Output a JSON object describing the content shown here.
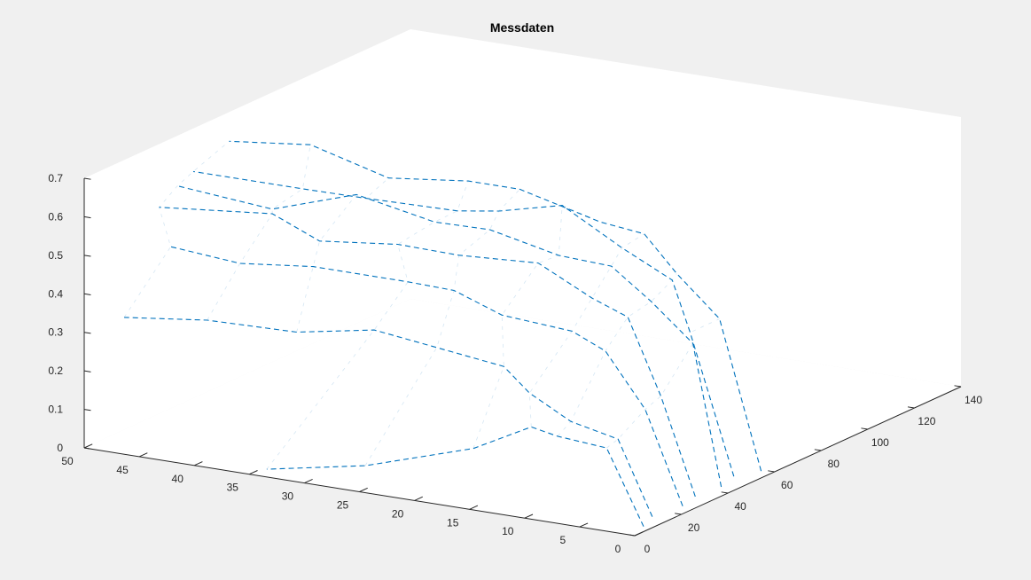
{
  "chart_data": {
    "type": "line",
    "plot_style": "3d",
    "title": "Messdaten",
    "xlabel": "",
    "ylabel": "",
    "zlabel": "",
    "xlim": [
      0,
      140
    ],
    "ylim": [
      0,
      50
    ],
    "zlim": [
      0,
      0.7
    ],
    "x_ticks": [
      0,
      20,
      40,
      60,
      80,
      100,
      120,
      140
    ],
    "y_ticks": [
      0,
      5,
      10,
      15,
      20,
      25,
      30,
      35,
      40,
      45,
      50
    ],
    "z_ticks": [
      0,
      0.1,
      0.2,
      0.3,
      0.4,
      0.5,
      0.6,
      0.7
    ],
    "line_style": "dashed",
    "color": "#0072BD",
    "grid": false,
    "series": [
      {
        "x": [
          7.35,
          6.98,
          6.76,
          5.79,
          4.99,
          0.0,
          0.0
        ],
        "y": [
          0.75,
          4.03,
          8.44,
          10.62,
          15.72,
          24.48,
          33.42
        ],
        "z": [
          0.0,
          0.19,
          0.201,
          0.218,
          0.141,
          0.07,
          0.02
        ]
      },
      {
        "x": [
          15.2,
          14.67,
          12.88,
          10.36,
          11.03,
          6.26,
          4.32,
          3.32,
          4.96,
          5.14
        ],
        "y": [
          1.62,
          4.62,
          8.52,
          11.75,
          14.23,
          19.3,
          24.58,
          31.41,
          39.88,
          47.46
        ],
        "z": [
          0.0,
          0.189,
          0.222,
          0.288,
          0.344,
          0.383,
          0.41,
          0.376,
          0.364,
          0.336
        ]
      },
      {
        "x": [
          25.92,
          24.98,
          23.66,
          21.22,
          16.8,
          17.42,
          15.86,
          14.07,
          13.55,
          17.43
        ],
        "y": [
          1.13,
          4.34,
          7.67,
          10.19,
          15.62,
          20.1,
          23.95,
          32.19,
          38.72,
          45.83
        ],
        "z": [
          0.0,
          0.239,
          0.379,
          0.426,
          0.455,
          0.497,
          0.506,
          0.513,
          0.493,
          0.493
        ]
      },
      {
        "x": [
          33.96,
          31.63,
          32.09,
          29.84,
          25.42,
          25.86,
          23.68,
          22.62,
          23.54,
          20.86
        ],
        "y": [
          1.69,
          4.32,
          7.42,
          10.2,
          14.15,
          21.44,
          26.53,
          33.41,
          37.9,
          47.61
        ],
        "z": [
          0.0,
          0.255,
          0.445,
          0.488,
          0.573,
          0.559,
          0.57,
          0.55,
          0.598,
          0.578
        ]
      },
      {
        "x": [
          43.55,
          43.8,
          39.87,
          39.16,
          34.67,
          32.81,
          32.88,
          32.04,
          29.18,
          28.4
        ],
        "y": [
          1.36,
          3.99,
          6.94,
          10.41,
          14.24,
          20.1,
          25.15,
          32.06,
          39.1,
          47.55
        ],
        "z": [
          0.0,
          0.36,
          0.466,
          0.544,
          0.567,
          0.612,
          0.609,
          0.651,
          0.589,
          0.613
        ]
      },
      {
        "x": [
          52.27,
          48.67,
          49.92,
          47.2,
          46.56,
          43.03,
          41.78,
          38.28,
          37.29,
          36.37
        ],
        "y": [
          2.06,
          5.27,
          7.16,
          11.15,
          16.44,
          21.45,
          24.96,
          32.51,
          38.05,
          47.79
        ],
        "z": [
          0.0,
          0.369,
          0.493,
          0.566,
          0.654,
          0.626,
          0.614,
          0.622,
          0.624,
          0.627
        ]
      },
      {
        "x": [
          58.99,
          58.48,
          54.72,
          54.86,
          54.21,
          51.73,
          49.08,
          47.39,
          46.06,
          45.33
        ],
        "y": [
          1.0,
          4.67,
          7.77,
          10.75,
          14.6,
          21.38,
          25.51,
          32.39,
          39.2,
          46.43
        ],
        "z": [
          0.0,
          0.38,
          0.494,
          0.583,
          0.598,
          0.659,
          0.669,
          0.65,
          0.709,
          0.687
        ]
      }
    ]
  }
}
